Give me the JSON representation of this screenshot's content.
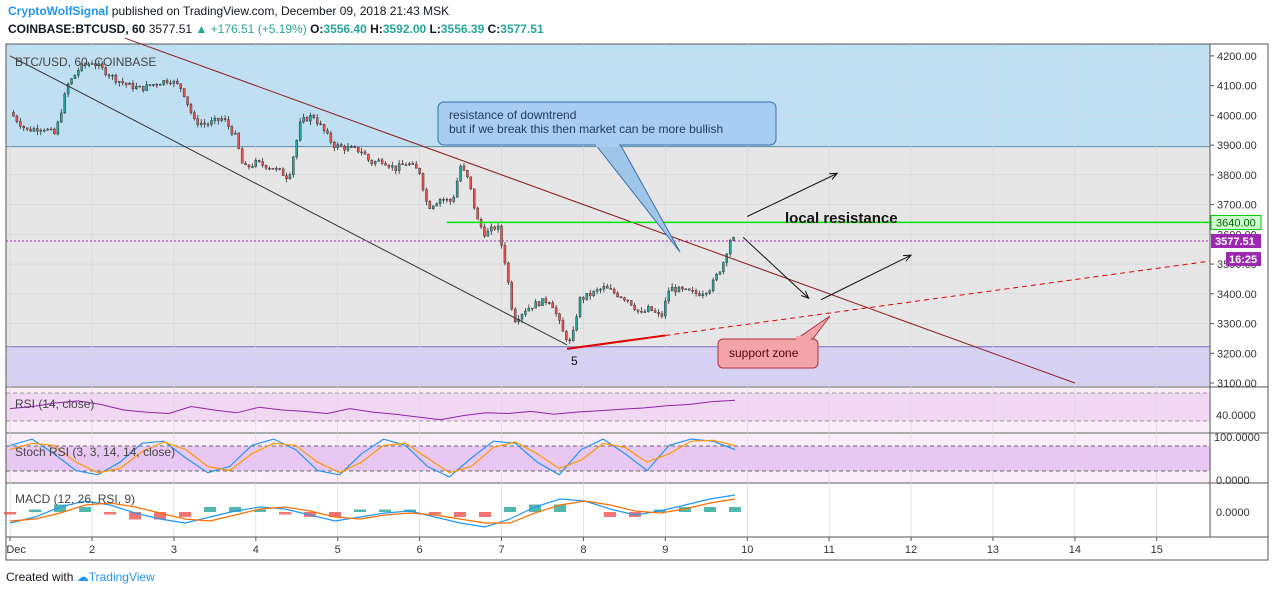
{
  "header": {
    "publisher": "CryptoWolfSignal",
    "published_text": "published on TradingView.com, December 09, 2018 21:43 MSK",
    "symbol": "COINBASE:BTCUSD, 60",
    "last": "3577.51",
    "change": "▲ +176.51 (+5.19%)",
    "o_label": "O:",
    "o_value": "3556.40",
    "h_label": "H:",
    "h_value": "3592.00",
    "l_label": "L:",
    "l_value": "3556.39",
    "c_label": "C:",
    "c_value": "3577.51"
  },
  "pane_labels": {
    "main": "BTC/USD, 60, COINBASE",
    "rsi": "RSI (14, close)",
    "stoch": "Stoch RSI (3, 3, 14, 14, close)",
    "macd": "MACD (12, 26, RSI, 9)"
  },
  "annotations": {
    "callout_line1": "resistance of downtrend",
    "callout_line2": "but if we break this then market can be more bullish",
    "local_resistance": "local resistance",
    "support_zone": "support zone",
    "wave_label": "5"
  },
  "price_badges": {
    "resistance": "3640.00",
    "last": "3577.51",
    "countdown": "16:25"
  },
  "indicator_axes": {
    "rsi_tick": "40.0000",
    "stoch_top": "100.0000",
    "stoch_bottom": "0.0000",
    "macd_tick": "0.0000"
  },
  "footer": {
    "created": "Created with",
    "brand": "TradingView"
  },
  "colors": {
    "up": "#26a69a",
    "down": "#ef5350",
    "resistance_line": "#00e600",
    "downtrend": "#8b1a1a",
    "support": "#e00000",
    "zone_blue": "#bfe0f2",
    "zone_purple": "#d6d1f2"
  },
  "chart_data": {
    "type": "candlestick",
    "price_axis": {
      "ticks": [
        3100,
        3200,
        3300,
        3400,
        3500,
        3600,
        3700,
        3800,
        3900,
        4000,
        4100,
        4200
      ],
      "tick_labels": [
        "3100.00",
        "3200.00",
        "3300.00",
        "3400.00",
        "3500.00",
        "3600.00",
        "3700.00",
        "3800.00",
        "3900.00",
        "4000.00",
        "4100.00",
        "4200.00"
      ],
      "range": [
        3090,
        4240
      ]
    },
    "time_axis": {
      "labels": [
        "Dec",
        "2",
        "3",
        "4",
        "5",
        "6",
        "7",
        "8",
        "9",
        "10",
        "11",
        "12",
        "13",
        "14",
        "15"
      ],
      "day_index": [
        1,
        2,
        3,
        4,
        5,
        6,
        7,
        8,
        9,
        10,
        11,
        12,
        13,
        14,
        15
      ],
      "range": [
        0.95,
        15.65
      ]
    },
    "zones": [
      {
        "name": "upper zone",
        "from": 3895,
        "to": 4240
      },
      {
        "name": "lower zone",
        "from": 3090,
        "to": 3222
      }
    ],
    "horizontal_levels": [
      {
        "name": "local resistance",
        "price": 3640,
        "from_day": 6.33,
        "to_day": 15.65
      },
      {
        "name": "last price",
        "price": 3577.51
      }
    ],
    "trend_lines": [
      {
        "name": "downtrend resistance",
        "points": [
          [
            2.4,
            4260
          ],
          [
            14.0,
            3100
          ]
        ]
      },
      {
        "name": "channel lower",
        "points": [
          [
            1.0,
            4200
          ],
          [
            7.8,
            3228
          ]
        ]
      },
      {
        "name": "support",
        "points": [
          [
            7.8,
            3215
          ],
          [
            9.0,
            3260
          ]
        ]
      },
      {
        "name": "support projection",
        "points": [
          [
            9.0,
            3260
          ],
          [
            15.65,
            3510
          ]
        ]
      }
    ],
    "arrows": [
      {
        "from": [
          10.0,
          3660
        ],
        "to": [
          11.1,
          3805
        ]
      },
      {
        "from": [
          9.95,
          3590
        ],
        "to": [
          10.75,
          3385
        ]
      },
      {
        "from": [
          10.9,
          3380
        ],
        "to": [
          12.0,
          3530
        ]
      }
    ],
    "price_path": [
      [
        1.0,
        4010
      ],
      [
        1.2,
        3950
      ],
      [
        1.4,
        3960
      ],
      [
        1.55,
        3935
      ],
      [
        1.7,
        4100
      ],
      [
        1.85,
        4160
      ],
      [
        2.0,
        4180
      ],
      [
        2.15,
        4150
      ],
      [
        2.3,
        4120
      ],
      [
        2.45,
        4100
      ],
      [
        2.6,
        4090
      ],
      [
        2.8,
        4110
      ],
      [
        2.95,
        4120
      ],
      [
        3.1,
        4090
      ],
      [
        3.25,
        3980
      ],
      [
        3.4,
        3970
      ],
      [
        3.6,
        3990
      ],
      [
        3.75,
        3930
      ],
      [
        3.85,
        3820
      ],
      [
        4.0,
        3840
      ],
      [
        4.15,
        3830
      ],
      [
        4.3,
        3810
      ],
      [
        4.4,
        3790
      ],
      [
        4.55,
        3980
      ],
      [
        4.7,
        4000
      ],
      [
        4.8,
        3960
      ],
      [
        4.95,
        3900
      ],
      [
        5.1,
        3890
      ],
      [
        5.3,
        3880
      ],
      [
        5.4,
        3840
      ],
      [
        5.55,
        3850
      ],
      [
        5.7,
        3820
      ],
      [
        5.85,
        3840
      ],
      [
        6.0,
        3810
      ],
      [
        6.1,
        3690
      ],
      [
        6.25,
        3720
      ],
      [
        6.4,
        3710
      ],
      [
        6.5,
        3830
      ],
      [
        6.6,
        3780
      ],
      [
        6.7,
        3650
      ],
      [
        6.8,
        3600
      ],
      [
        6.95,
        3630
      ],
      [
        7.05,
        3500
      ],
      [
        7.15,
        3310
      ],
      [
        7.3,
        3350
      ],
      [
        7.45,
        3370
      ],
      [
        7.6,
        3380
      ],
      [
        7.75,
        3270
      ],
      [
        7.85,
        3230
      ],
      [
        7.95,
        3380
      ],
      [
        8.1,
        3400
      ],
      [
        8.25,
        3420
      ],
      [
        8.4,
        3400
      ],
      [
        8.55,
        3380
      ],
      [
        8.7,
        3330
      ],
      [
        8.8,
        3350
      ],
      [
        8.95,
        3320
      ],
      [
        9.05,
        3420
      ],
      [
        9.2,
        3410
      ],
      [
        9.4,
        3400
      ],
      [
        9.55,
        3420
      ],
      [
        9.7,
        3500
      ],
      [
        9.8,
        3590
      ],
      [
        9.85,
        3577.51
      ]
    ],
    "rsi": {
      "values": [
        52,
        55,
        60,
        63,
        58,
        50,
        47,
        45,
        55,
        50,
        46,
        54,
        50,
        48,
        45,
        52,
        47,
        44,
        40,
        36,
        42,
        46,
        45,
        48,
        44,
        47,
        49,
        51,
        53,
        56,
        58,
        62,
        64
      ],
      "reference_lines": [
        70,
        30
      ]
    },
    "stoch_rsi": {
      "k": [
        80,
        95,
        60,
        20,
        10,
        40,
        85,
        90,
        50,
        15,
        30,
        80,
        95,
        70,
        20,
        10,
        60,
        95,
        80,
        30,
        5,
        50,
        90,
        85,
        40,
        10,
        70,
        95,
        60,
        20,
        80,
        95,
        90,
        70
      ],
      "d": [
        70,
        85,
        80,
        40,
        15,
        25,
        65,
        88,
        70,
        30,
        20,
        60,
        85,
        80,
        40,
        15,
        40,
        80,
        85,
        50,
        15,
        30,
        75,
        88,
        60,
        25,
        45,
        85,
        75,
        40,
        60,
        90,
        92,
        80
      ],
      "reference_lines": [
        80,
        20
      ]
    },
    "macd": {
      "macd": [
        -6,
        -3,
        2,
        5,
        3,
        -1,
        -4,
        -6,
        -3,
        0,
        2,
        1,
        -2,
        -5,
        -3,
        -1,
        0,
        -3,
        -6,
        -8,
        -4,
        2,
        6,
        5,
        1,
        -2,
        0,
        3,
        6,
        8
      ],
      "signal": [
        -5,
        -4,
        -1,
        3,
        4,
        2,
        -1,
        -4,
        -5,
        -2,
        1,
        2,
        0,
        -3,
        -4,
        -2,
        -1,
        -2,
        -4,
        -6,
        -6,
        -1,
        3,
        5,
        3,
        0,
        -1,
        1,
        4,
        6
      ],
      "histogram": [
        -1,
        1,
        3,
        2,
        -1,
        -3,
        -3,
        -2,
        2,
        2,
        1,
        -1,
        -2,
        -2,
        1,
        1,
        1,
        -1,
        -2,
        -2,
        2,
        3,
        3,
        0,
        -2,
        -2,
        1,
        2,
        2,
        2
      ]
    }
  }
}
